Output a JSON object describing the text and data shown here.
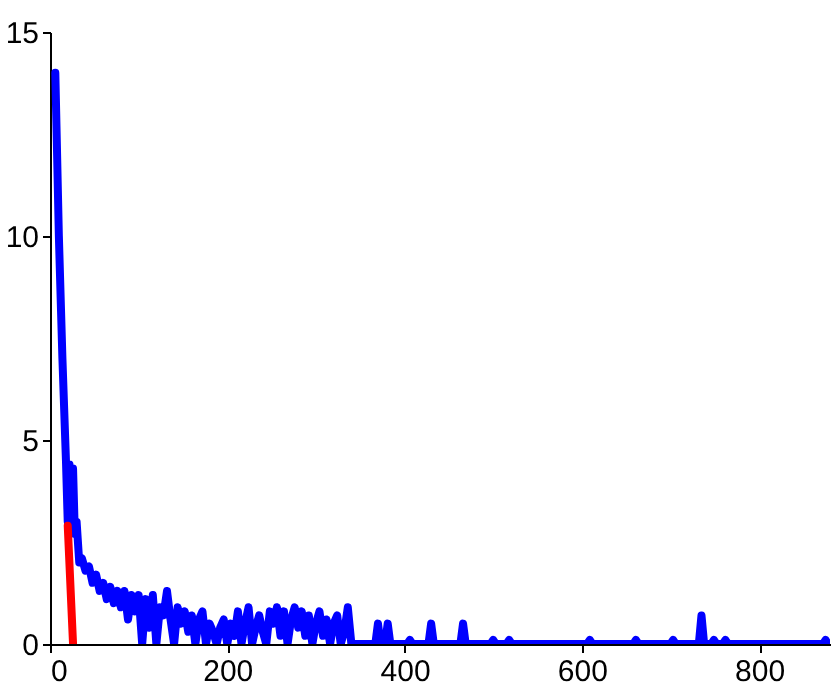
{
  "chart_data": {
    "type": "line",
    "xlim": [
      0,
      880
    ],
    "ylim": [
      0,
      15
    ],
    "xticks": [
      0,
      200,
      400,
      600,
      800
    ],
    "yticks": [
      0,
      5,
      10,
      15
    ],
    "grid": false,
    "marker": "none",
    "line_style": "solid",
    "series": [
      {
        "color": "#0000ff",
        "x": [
          6,
          10,
          14,
          18,
          20,
          22,
          24,
          26,
          28,
          30,
          33,
          36,
          40,
          44,
          48,
          52,
          56,
          60,
          64,
          68,
          72,
          76,
          80,
          84,
          88,
          92,
          96,
          100,
          104,
          108,
          112,
          116,
          120,
          124,
          128,
          132,
          136,
          140,
          144,
          148,
          152,
          156,
          160,
          164,
          168,
          172,
          176,
          180,
          184,
          188,
          192,
          196,
          200,
          204,
          208,
          212,
          216,
          220,
          224,
          228,
          232,
          236,
          240,
          244,
          248,
          252,
          256,
          260,
          264,
          268,
          272,
          276,
          280,
          284,
          288,
          292,
          296,
          300,
          304,
          308,
          312,
          316,
          320,
          324,
          328,
          332,
          336,
          340,
          344,
          367,
          370,
          373,
          378,
          381,
          384,
          403,
          406,
          409,
          427,
          430,
          433,
          463,
          466,
          469,
          497,
          500,
          503,
          515,
          518,
          521,
          606,
          609,
          612,
          658,
          661,
          664,
          700,
          703,
          706,
          732,
          735,
          738,
          746,
          749,
          752,
          759,
          762,
          765,
          872,
          875,
          878
        ],
        "values": [
          14,
          10,
          7,
          4.5,
          3,
          4.4,
          2.8,
          4.3,
          2.7,
          3,
          2,
          2.1,
          1.8,
          1.9,
          1.5,
          1.7,
          1.3,
          1.5,
          1.1,
          1.4,
          1,
          1.3,
          0.9,
          1.3,
          0.6,
          1.2,
          0.8,
          1.2,
          0,
          1.1,
          0.4,
          1.2,
          0,
          0.9,
          0.7,
          1.3,
          0.6,
          0,
          0.9,
          0.5,
          0.8,
          0.3,
          0.7,
          0,
          0.6,
          0.8,
          0,
          0.5,
          0.3,
          0,
          0.4,
          0.6,
          0,
          0.5,
          0.2,
          0.8,
          0,
          0.5,
          0.9,
          0,
          0.4,
          0.7,
          0.3,
          0,
          0.8,
          0.5,
          0.9,
          0.2,
          0.8,
          0,
          0.6,
          0.9,
          0.4,
          0.8,
          0.2,
          0.7,
          0,
          0.5,
          0.8,
          0.2,
          0.6,
          0,
          0.5,
          0.7,
          0,
          0.3,
          0.9,
          0,
          0,
          0,
          0.5,
          0,
          0,
          0.5,
          0,
          0,
          0.1,
          0,
          0,
          0.5,
          0,
          0,
          0.5,
          0,
          0,
          0.1,
          0,
          0,
          0.1,
          0,
          0,
          0.1,
          0,
          0,
          0.1,
          0,
          0,
          0.1,
          0,
          0,
          0.7,
          0,
          0,
          0.1,
          0,
          0,
          0.1,
          0,
          0,
          0.1,
          0
        ]
      },
      {
        "color": "#ff0000",
        "x": [
          20,
          26
        ],
        "values": [
          2.9,
          0
        ]
      }
    ]
  }
}
